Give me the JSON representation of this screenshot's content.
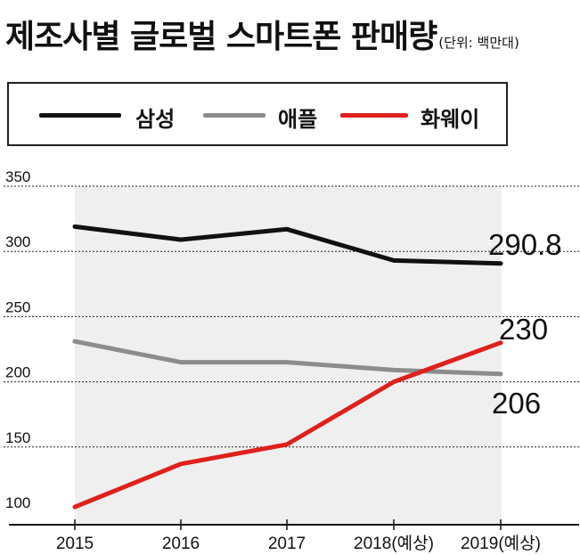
{
  "header": {
    "title": "제조사별 글로벌 스마트폰 판매량",
    "unit": "(단위: 백만대)"
  },
  "chart_data": {
    "type": "line",
    "categories": [
      "2015",
      "2016",
      "2017",
      "2018(예상)",
      "2019(예상)"
    ],
    "y_ticks": [
      "350",
      "300",
      "250",
      "200",
      "150",
      "100"
    ],
    "ylim": [
      100,
      350
    ],
    "grid": true,
    "legend_position": "top",
    "series": [
      {
        "name": "삼성",
        "values": [
          319,
          309,
          317,
          293,
          290.8
        ],
        "color": "#111111"
      },
      {
        "name": "애플",
        "values": [
          231,
          215,
          215,
          209,
          206
        ],
        "color": "#8c8c8c"
      },
      {
        "name": "화웨이",
        "values": [
          104,
          137,
          152,
          200,
          230
        ],
        "color": "#e0201b"
      }
    ],
    "end_labels": [
      "290.8",
      "206",
      "230"
    ]
  }
}
